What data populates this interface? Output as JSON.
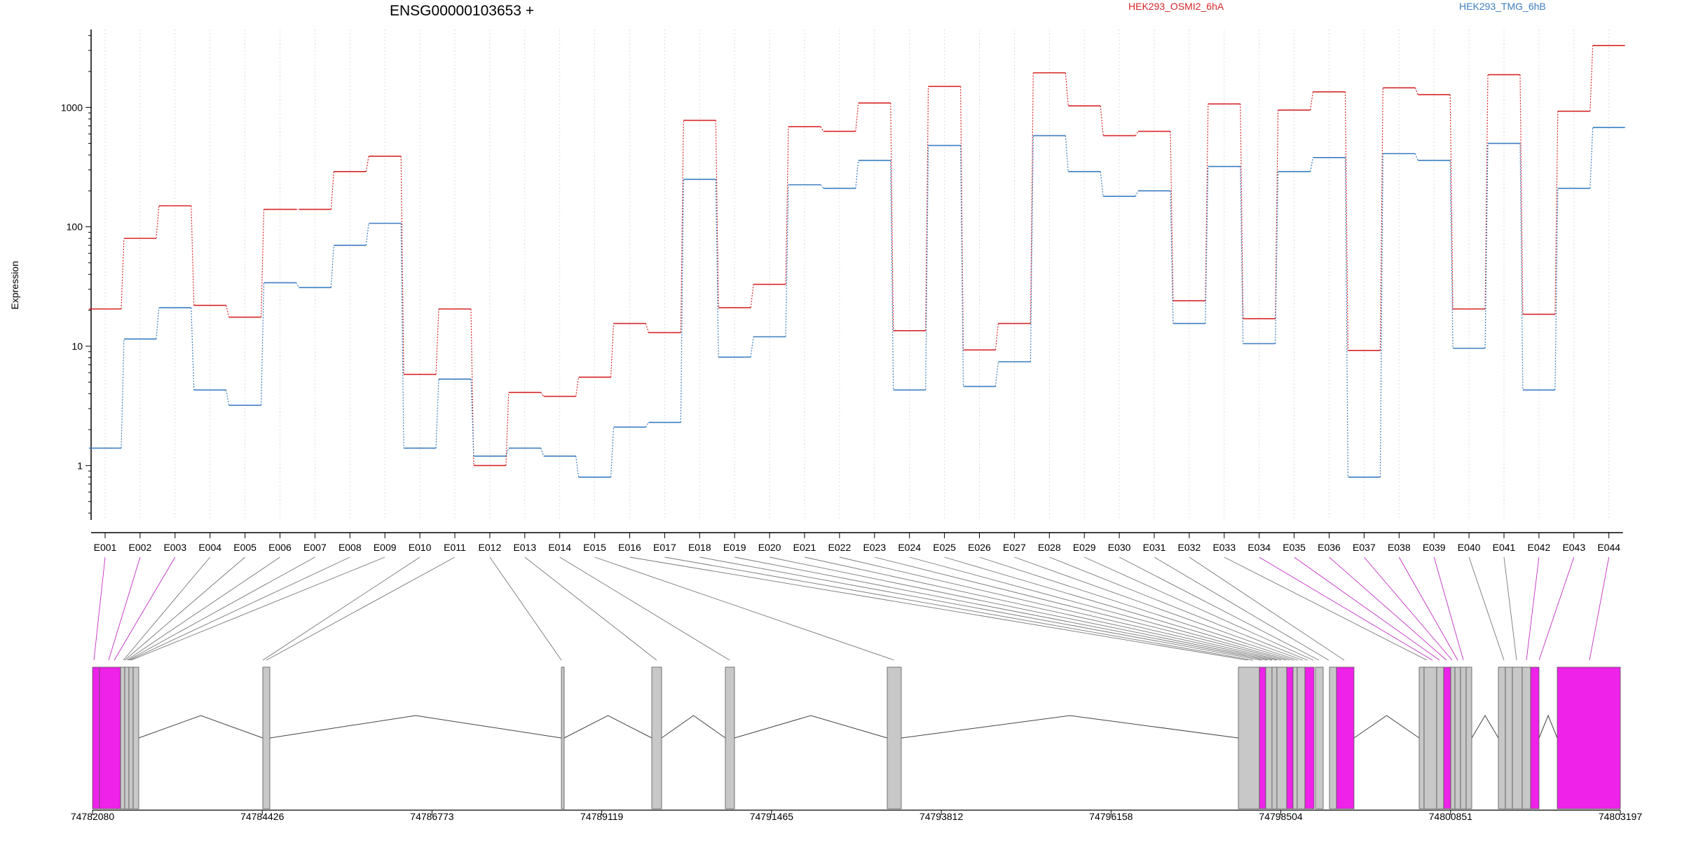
{
  "chart_data": {
    "type": "line",
    "title": "ENSG00000103653 +",
    "ylabel": "Expression",
    "yscale": "log",
    "ylim": [
      0.35,
      4500
    ],
    "yticks": [
      "1",
      "10",
      "100",
      "1000"
    ],
    "categories": [
      "E001",
      "E002",
      "E003",
      "E004",
      "E005",
      "E006",
      "E007",
      "E008",
      "E009",
      "E010",
      "E011",
      "E012",
      "E013",
      "E014",
      "E015",
      "E016",
      "E017",
      "E018",
      "E019",
      "E020",
      "E021",
      "E022",
      "E023",
      "E024",
      "E025",
      "E026",
      "E027",
      "E028",
      "E029",
      "E030",
      "E031",
      "E032",
      "E033",
      "E034",
      "E035",
      "E036",
      "E037",
      "E038",
      "E039",
      "E040",
      "E041",
      "E042",
      "E043",
      "E044"
    ],
    "series": [
      {
        "name": "HEK293_OSMI2_6hA",
        "color": "#d62728",
        "values": [
          20.5,
          80,
          150,
          22,
          17.5,
          140,
          140,
          290,
          390,
          5.8,
          20.5,
          1.0,
          4.1,
          3.8,
          5.5,
          15.5,
          13,
          780,
          21,
          33,
          690,
          630,
          1090,
          13.5,
          1500,
          9.3,
          15.5,
          1950,
          1030,
          580,
          630,
          24,
          1070,
          17,
          950,
          1350,
          9.2,
          1460,
          1280,
          20.5,
          1880,
          18.5,
          930,
          3300
        ]
      },
      {
        "name": "HEK293_TMG_6hB",
        "color": "#3b7dc0",
        "values": [
          1.4,
          11.5,
          21,
          4.3,
          3.2,
          34,
          31,
          70,
          107,
          1.4,
          5.3,
          1.2,
          1.4,
          1.2,
          0.8,
          2.1,
          2.3,
          250,
          8.1,
          12,
          225,
          210,
          360,
          4.3,
          480,
          4.6,
          7.4,
          580,
          290,
          180,
          200,
          15.5,
          320,
          10.5,
          290,
          380,
          0.8,
          410,
          360,
          9.6,
          500,
          4.3,
          210,
          680
        ]
      }
    ],
    "genome": {
      "axis_start": 74782080,
      "axis_end": 74803197,
      "axis_labels": [
        "74782080",
        "74784426",
        "74786773",
        "74789119",
        "74791465",
        "74793812",
        "74796158",
        "74798504",
        "74800851",
        "74803197"
      ],
      "highlight_color": "#ee22e8",
      "exon_color": "#c8c8c8",
      "highlighted_exons": [
        "E001",
        "E002",
        "E003",
        "E034",
        "E035",
        "E036",
        "E037",
        "E038",
        "E039",
        "E042",
        "E043",
        "E044"
      ]
    }
  }
}
